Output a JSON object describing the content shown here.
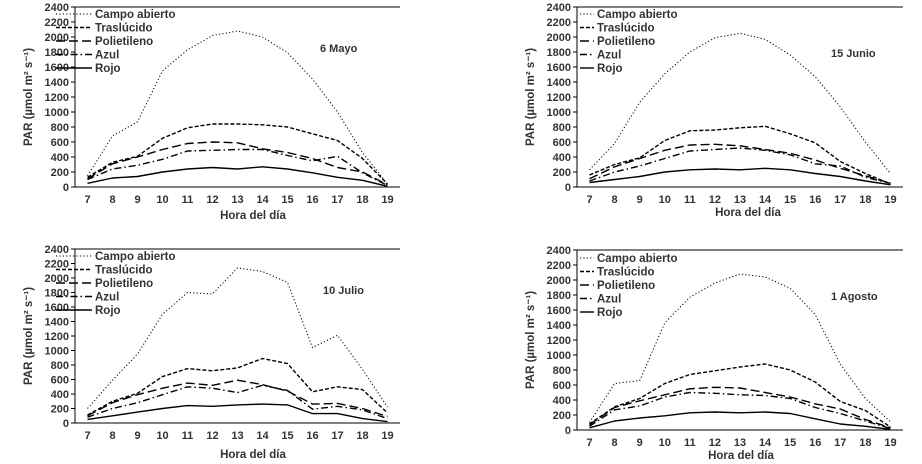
{
  "chart_data": [
    {
      "type": "line",
      "title": "6 Mayo",
      "xlabel": "Hora del día",
      "ylabel": "PAR (µmol m² s⁻¹)",
      "x": [
        7,
        8,
        9,
        10,
        11,
        12,
        13,
        14,
        15,
        16,
        17,
        18,
        19
      ],
      "x_tick_labels": [
        "7",
        "8",
        "9",
        "10",
        "11",
        "12",
        "13",
        "14",
        "15",
        "16",
        "17",
        "18",
        "19"
      ],
      "ylim": [
        0,
        2400
      ],
      "y_ticks": [
        0,
        200,
        400,
        600,
        800,
        1000,
        1200,
        1400,
        1600,
        1800,
        2000,
        2200,
        2400
      ],
      "series": [
        {
          "name": "Campo abierto",
          "values": [
            150,
            680,
            870,
            1550,
            1830,
            2020,
            2080,
            2000,
            1790,
            1440,
            1000,
            460,
            40
          ]
        },
        {
          "name": "Traslúcido",
          "values": [
            130,
            330,
            410,
            650,
            790,
            840,
            840,
            830,
            800,
            710,
            620,
            380,
            40
          ]
        },
        {
          "name": "Polietileno",
          "values": [
            110,
            310,
            400,
            500,
            580,
            600,
            590,
            510,
            460,
            380,
            260,
            200,
            30
          ]
        },
        {
          "name": "Azul",
          "values": [
            100,
            240,
            290,
            370,
            480,
            490,
            500,
            500,
            420,
            350,
            410,
            190,
            20
          ]
        },
        {
          "name": "Rojo",
          "values": [
            50,
            120,
            140,
            200,
            240,
            260,
            240,
            270,
            240,
            190,
            130,
            90,
            10
          ]
        }
      ]
    },
    {
      "type": "line",
      "title": "15 Junio",
      "xlabel": "Hora del día",
      "ylabel": "PAR (µmol m² s⁻¹)",
      "x": [
        7,
        8,
        9,
        10,
        11,
        12,
        13,
        14,
        15,
        16,
        17,
        18,
        19
      ],
      "x_tick_labels": [
        "7",
        "8",
        "9",
        "10",
        "11",
        "12",
        "13",
        "14",
        "15",
        "16",
        "17",
        "18",
        "19"
      ],
      "ylim": [
        0,
        2400
      ],
      "y_ticks": [
        0,
        200,
        400,
        600,
        800,
        1000,
        1200,
        1400,
        1600,
        1800,
        2000,
        2200,
        2400
      ],
      "series": [
        {
          "name": "Campo abierto",
          "values": [
            230,
            580,
            1130,
            1510,
            1800,
            1990,
            2050,
            1970,
            1760,
            1470,
            1070,
            600,
            180
          ]
        },
        {
          "name": "Traslúcido",
          "values": [
            160,
            300,
            390,
            620,
            750,
            760,
            790,
            810,
            710,
            590,
            340,
            180,
            40
          ]
        },
        {
          "name": "Polietileno",
          "values": [
            110,
            270,
            380,
            490,
            560,
            570,
            550,
            500,
            450,
            360,
            250,
            150,
            50
          ]
        },
        {
          "name": "Azul",
          "values": [
            80,
            200,
            280,
            380,
            480,
            500,
            520,
            490,
            430,
            310,
            280,
            130,
            50
          ]
        },
        {
          "name": "Rojo",
          "values": [
            60,
            100,
            140,
            200,
            230,
            240,
            230,
            250,
            230,
            180,
            140,
            80,
            30
          ]
        }
      ]
    },
    {
      "type": "line",
      "title": "10 Julio",
      "xlabel": "Hora del día",
      "ylabel": "PAR (µmol m² s⁻¹)",
      "x": [
        7,
        8,
        9,
        10,
        11,
        12,
        13,
        14,
        15,
        16,
        17,
        18,
        19
      ],
      "x_tick_labels": [
        "7",
        "8",
        "9",
        "10",
        "11",
        "12",
        "13",
        "14",
        "15",
        "16",
        "17",
        "18",
        "19"
      ],
      "ylim": [
        0,
        2400
      ],
      "y_ticks": [
        0,
        200,
        400,
        600,
        800,
        1000,
        1200,
        1400,
        1600,
        1800,
        2000,
        2200,
        2400
      ],
      "series": [
        {
          "name": "Campo abierto",
          "values": [
            200,
            590,
            950,
            1500,
            1800,
            1780,
            2140,
            2090,
            1940,
            1040,
            1210,
            740,
            220
          ]
        },
        {
          "name": "Traslúcido",
          "values": [
            110,
            300,
            410,
            640,
            750,
            720,
            760,
            890,
            820,
            430,
            500,
            460,
            140
          ]
        },
        {
          "name": "Polietileno",
          "values": [
            100,
            280,
            390,
            480,
            550,
            520,
            590,
            530,
            440,
            260,
            270,
            200,
            90
          ]
        },
        {
          "name": "Azul",
          "values": [
            80,
            200,
            280,
            390,
            500,
            480,
            420,
            520,
            450,
            190,
            230,
            180,
            60
          ]
        },
        {
          "name": "Rojo",
          "values": [
            50,
            100,
            150,
            200,
            240,
            230,
            250,
            260,
            250,
            130,
            130,
            60,
            20
          ]
        }
      ]
    },
    {
      "type": "line",
      "title": "1 Agosto",
      "xlabel": "Hora del día",
      "ylabel": "PAR (µmol m² s⁻¹)",
      "x": [
        7,
        8,
        9,
        10,
        11,
        12,
        13,
        14,
        15,
        16,
        17,
        18,
        19
      ],
      "x_tick_labels": [
        "7",
        "8",
        "9",
        "10",
        "11",
        "12",
        "13",
        "14",
        "15",
        "16",
        "17",
        "18",
        "19"
      ],
      "ylim": [
        0,
        2400
      ],
      "y_ticks": [
        0,
        200,
        400,
        600,
        800,
        1000,
        1200,
        1400,
        1600,
        1800,
        2000,
        2200,
        2400
      ],
      "series": [
        {
          "name": "Campo abierto",
          "values": [
            100,
            620,
            660,
            1430,
            1770,
            1960,
            2080,
            2040,
            1890,
            1540,
            880,
            420,
            110
          ]
        },
        {
          "name": "Traslúcido",
          "values": [
            80,
            310,
            420,
            620,
            740,
            790,
            840,
            880,
            800,
            640,
            380,
            260,
            40
          ]
        },
        {
          "name": "Polietileno",
          "values": [
            70,
            300,
            390,
            470,
            550,
            570,
            560,
            500,
            440,
            350,
            280,
            140,
            30
          ]
        },
        {
          "name": "Azul",
          "values": [
            50,
            270,
            320,
            440,
            500,
            490,
            470,
            460,
            420,
            300,
            220,
            120,
            20
          ]
        },
        {
          "name": "Rojo",
          "values": [
            30,
            120,
            160,
            190,
            230,
            240,
            230,
            240,
            220,
            150,
            80,
            50,
            10
          ]
        }
      ]
    }
  ]
}
